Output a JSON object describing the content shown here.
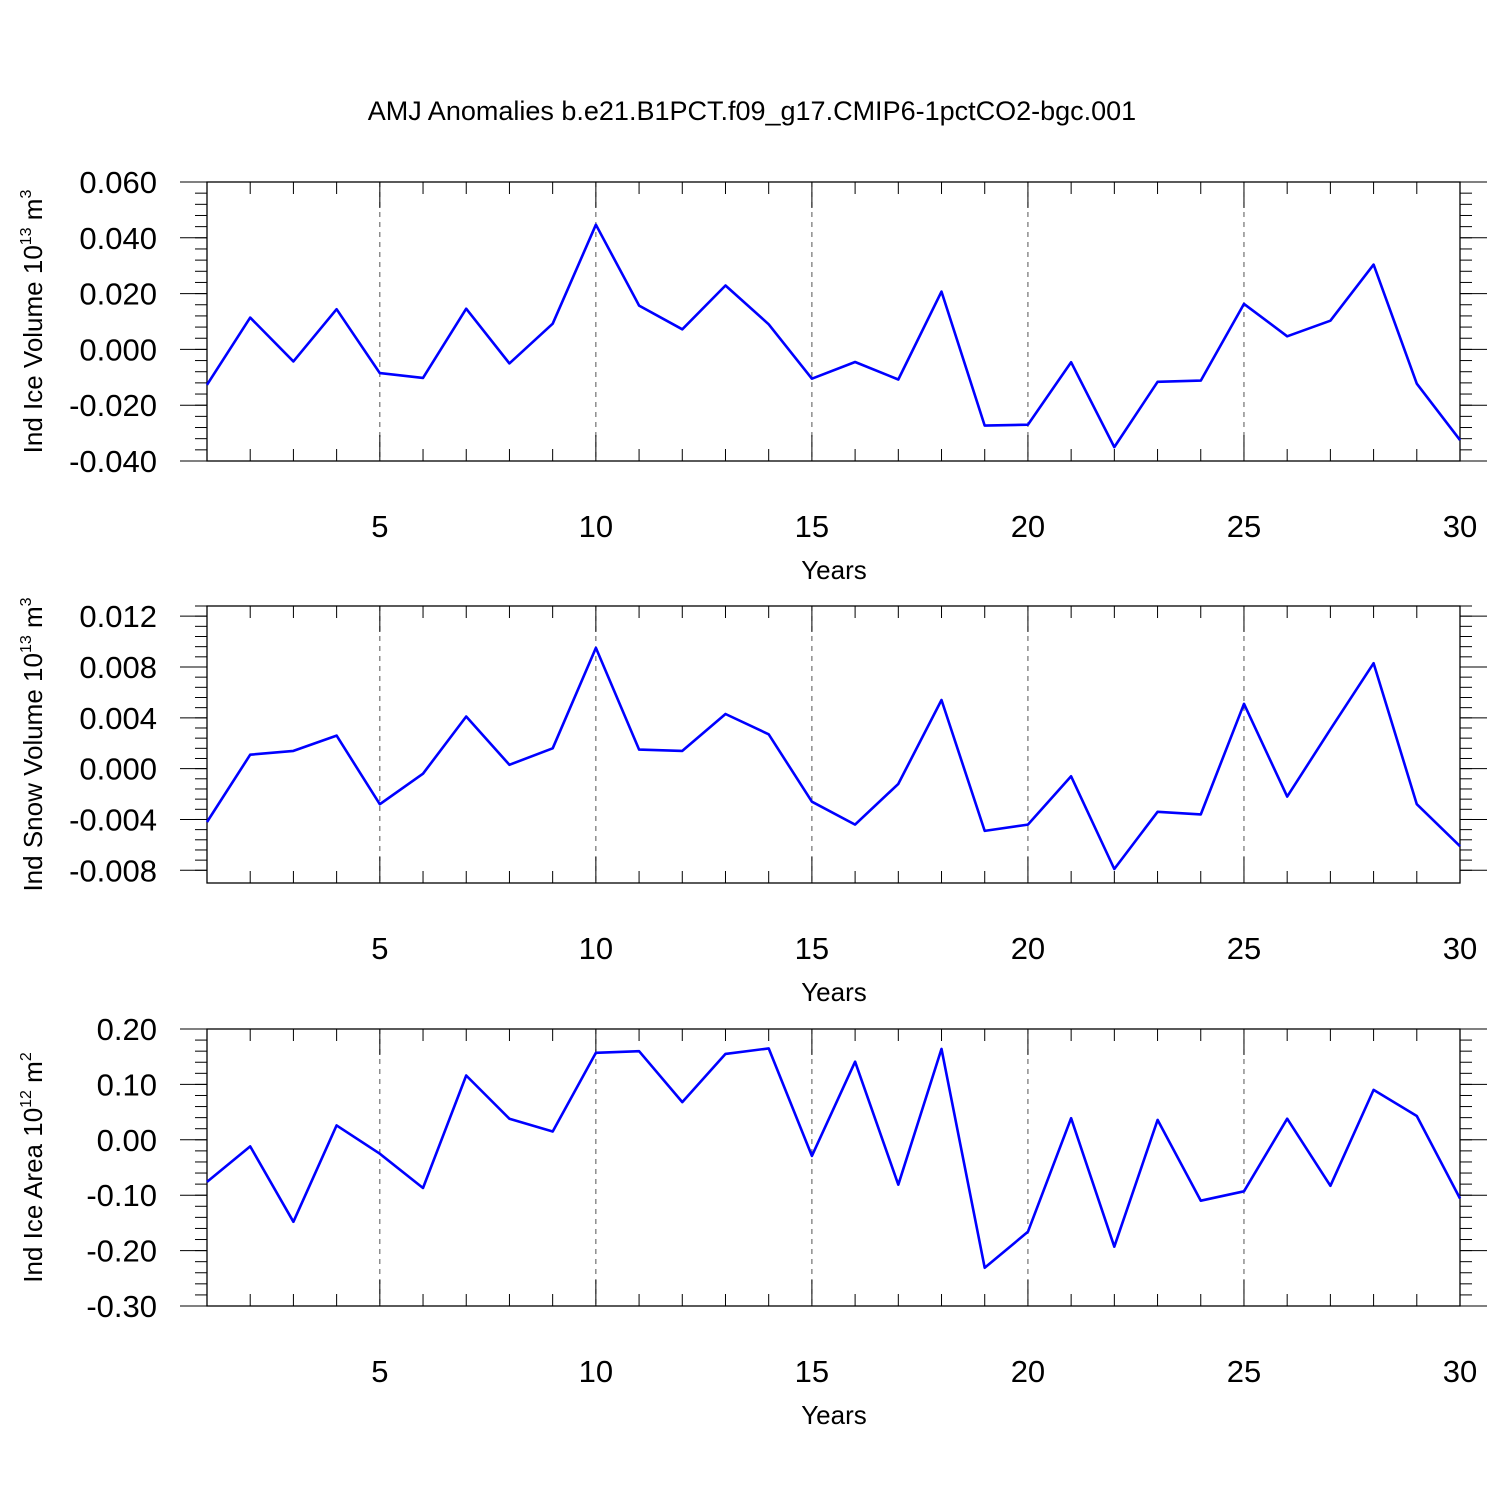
{
  "title": "AMJ Anomalies b.e21.B1PCT.f09_g17.CMIP6-1pctCO2-bgc.001",
  "colors": {
    "line": "#0000ff",
    "axis": "#000000",
    "grid": "#555555"
  },
  "chart_data": [
    {
      "type": "line",
      "xlabel": "Years",
      "ylabel": {
        "text": "Ind Ice Volume 10",
        "sup": "13",
        "unit": " m",
        "unit_sup": "3"
      },
      "xlim": [
        1,
        30
      ],
      "ylim": [
        -0.04,
        0.06
      ],
      "xticks": [
        5,
        10,
        15,
        20,
        25,
        30
      ],
      "yticks": [
        -0.04,
        -0.02,
        0.0,
        0.02,
        0.04,
        0.06
      ],
      "ytick_labels": [
        "-0.040",
        "-0.020",
        "0.000",
        "0.020",
        "0.040",
        "0.060"
      ],
      "grid": "vertical dashed at major x ticks",
      "x": [
        1,
        2,
        3,
        4,
        5,
        6,
        7,
        8,
        9,
        10,
        11,
        12,
        13,
        14,
        15,
        16,
        17,
        18,
        19,
        20,
        21,
        22,
        23,
        24,
        25,
        26,
        27,
        28,
        29,
        30
      ],
      "values": [
        -0.0127,
        0.0114,
        -0.0043,
        0.0144,
        -0.0085,
        -0.0102,
        0.0146,
        -0.005,
        0.0092,
        0.0447,
        0.0157,
        0.0072,
        0.0229,
        0.009,
        -0.0105,
        -0.0045,
        -0.0108,
        0.0207,
        -0.0273,
        -0.027,
        -0.0046,
        -0.035,
        -0.0116,
        -0.0112,
        0.0163,
        0.0047,
        0.0103,
        0.0304,
        -0.0123,
        -0.0325
      ]
    },
    {
      "type": "line",
      "xlabel": "Years",
      "ylabel": {
        "text": "Ind Snow Volume 10",
        "sup": "13",
        "unit": " m",
        "unit_sup": "3"
      },
      "xlim": [
        1,
        30
      ],
      "ylim": [
        -0.009,
        0.0128
      ],
      "xticks": [
        5,
        10,
        15,
        20,
        25,
        30
      ],
      "yticks": [
        -0.008,
        -0.004,
        0.0,
        0.004,
        0.008,
        0.012
      ],
      "ytick_labels": [
        "-0.008",
        "-0.004",
        "0.000",
        "0.004",
        "0.008",
        "0.012"
      ],
      "grid": "vertical dashed at major x ticks",
      "x": [
        1,
        2,
        3,
        4,
        5,
        6,
        7,
        8,
        9,
        10,
        11,
        12,
        13,
        14,
        15,
        16,
        17,
        18,
        19,
        20,
        21,
        22,
        23,
        24,
        25,
        26,
        27,
        28,
        29,
        30
      ],
      "values": [
        -0.0042,
        0.0011,
        0.0014,
        0.0026,
        -0.0028,
        -0.0004,
        0.0041,
        0.0003,
        0.0016,
        0.0095,
        0.0015,
        0.0014,
        0.0043,
        0.0027,
        -0.0026,
        -0.0044,
        -0.0012,
        0.0054,
        -0.0049,
        -0.0044,
        -0.0006,
        -0.0079,
        -0.0034,
        -0.0036,
        0.0051,
        -0.0022,
        0.0031,
        0.0083,
        -0.0028,
        -0.0061
      ]
    },
    {
      "type": "line",
      "xlabel": "Years",
      "ylabel": {
        "text": "Ind Ice Area 10",
        "sup": "12",
        "unit": " m",
        "unit_sup": "2"
      },
      "xlim": [
        1,
        30
      ],
      "ylim": [
        -0.3,
        0.2
      ],
      "xticks": [
        5,
        10,
        15,
        20,
        25,
        30
      ],
      "yticks": [
        -0.3,
        -0.2,
        -0.1,
        0.0,
        0.1,
        0.2
      ],
      "ytick_labels": [
        "-0.30",
        "-0.20",
        "-0.10",
        "0.00",
        "0.10",
        "0.20"
      ],
      "grid": "vertical dashed at major x ticks",
      "x": [
        1,
        2,
        3,
        4,
        5,
        6,
        7,
        8,
        9,
        10,
        11,
        12,
        13,
        14,
        15,
        16,
        17,
        18,
        19,
        20,
        21,
        22,
        23,
        24,
        25,
        26,
        27,
        28,
        29,
        30
      ],
      "values": [
        -0.076,
        -0.012,
        -0.148,
        0.026,
        -0.025,
        -0.087,
        0.116,
        0.038,
        0.015,
        0.157,
        0.16,
        0.068,
        0.155,
        0.165,
        -0.029,
        0.141,
        -0.081,
        0.164,
        -0.231,
        -0.166,
        0.039,
        -0.193,
        0.036,
        -0.11,
        -0.093,
        0.038,
        -0.083,
        0.09,
        0.043,
        -0.106
      ]
    }
  ]
}
